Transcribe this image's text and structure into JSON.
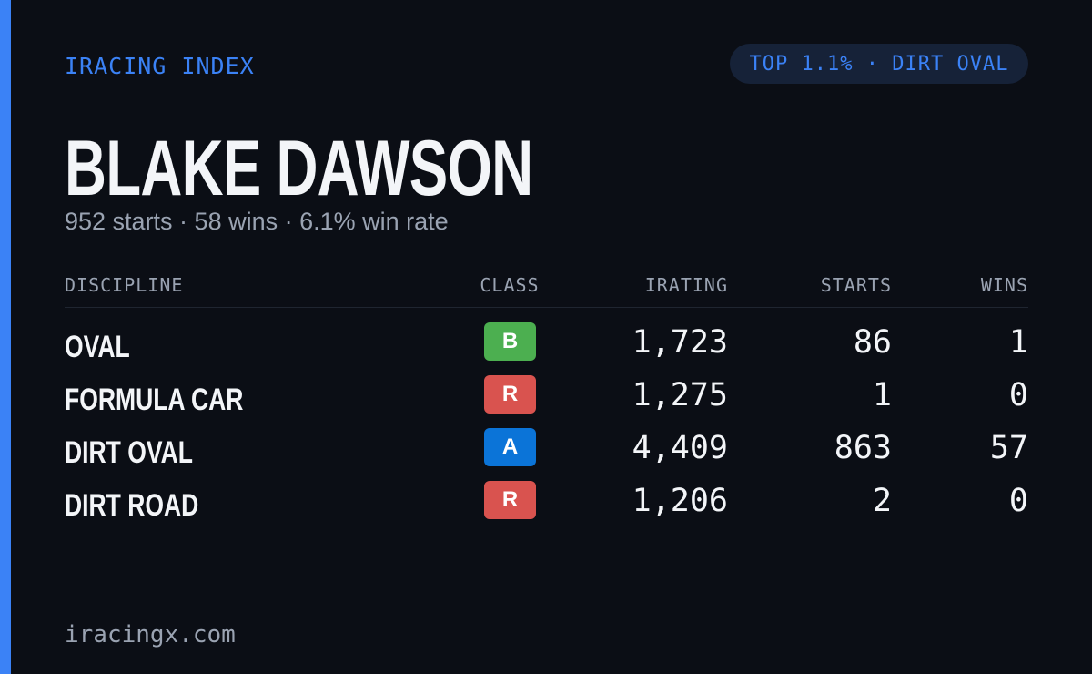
{
  "header": {
    "label": "IRACING INDEX",
    "badge": "TOP 1.1% · DIRT OVAL"
  },
  "driver": {
    "name": "BLAKE DAWSON",
    "summary": "952 starts · 58 wins · 6.1% win rate"
  },
  "table": {
    "columns": [
      "DISCIPLINE",
      "CLASS",
      "IRATING",
      "STARTS",
      "WINS"
    ],
    "rows": [
      {
        "discipline": "OVAL",
        "class": "B",
        "class_color": "#4caf50",
        "irating": "1,723",
        "starts": "86",
        "wins": "1"
      },
      {
        "discipline": "FORMULA CAR",
        "class": "R",
        "class_color": "#d9534f",
        "irating": "1,275",
        "starts": "1",
        "wins": "0"
      },
      {
        "discipline": "DIRT OVAL",
        "class": "A",
        "class_color": "#0b74d8",
        "irating": "4,409",
        "starts": "863",
        "wins": "57"
      },
      {
        "discipline": "DIRT ROAD",
        "class": "R",
        "class_color": "#d9534f",
        "irating": "1,206",
        "starts": "2",
        "wins": "0"
      }
    ]
  },
  "footer": {
    "site": "iracingx.com"
  }
}
